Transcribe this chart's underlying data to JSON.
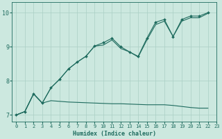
{
  "background_color": "#cce8df",
  "grid_color": "#aacfc5",
  "line_color": "#1e6b5e",
  "xlabel": "Humidex (Indice chaleur)",
  "xlim": [
    -0.5,
    23
  ],
  "ylim": [
    6.8,
    10.3
  ],
  "yticks": [
    7,
    8,
    9,
    10
  ],
  "xticks": [
    0,
    1,
    2,
    3,
    4,
    5,
    6,
    7,
    8,
    9,
    10,
    11,
    12,
    13,
    14,
    15,
    16,
    17,
    18,
    19,
    20,
    21,
    22,
    23
  ],
  "s1_x": [
    0,
    1,
    2,
    3,
    4,
    5,
    6,
    7,
    8,
    9,
    10,
    11,
    12,
    13,
    14,
    15,
    16,
    17,
    18,
    19,
    20,
    21,
    22
  ],
  "s1_y": [
    7.0,
    7.1,
    7.62,
    7.35,
    7.8,
    8.05,
    8.35,
    8.55,
    8.72,
    9.02,
    9.12,
    9.25,
    9.0,
    8.85,
    8.72,
    9.25,
    9.72,
    9.8,
    9.3,
    9.8,
    9.9,
    9.9,
    10.0
  ],
  "s2_x": [
    0,
    1,
    2,
    3,
    4,
    5,
    6,
    7,
    8,
    9,
    10,
    11,
    12,
    13,
    14,
    15,
    16,
    17,
    18,
    19,
    20,
    21,
    22
  ],
  "s2_y": [
    7.0,
    7.1,
    7.62,
    7.35,
    7.8,
    8.05,
    8.35,
    8.55,
    8.72,
    9.02,
    9.05,
    9.2,
    8.95,
    8.85,
    8.7,
    9.2,
    9.65,
    9.75,
    9.3,
    9.75,
    9.85,
    9.85,
    9.98
  ],
  "s3_x": [
    0,
    1,
    2,
    3,
    4,
    5,
    6,
    7,
    8,
    9,
    10,
    11,
    12,
    13,
    14,
    15,
    16,
    17,
    18,
    19,
    20,
    21,
    22
  ],
  "s3_y": [
    7.0,
    7.1,
    7.62,
    7.35,
    7.42,
    7.4,
    7.38,
    7.37,
    7.36,
    7.35,
    7.34,
    7.33,
    7.33,
    7.32,
    7.31,
    7.3,
    7.3,
    7.3,
    7.28,
    7.25,
    7.22,
    7.2,
    7.2
  ],
  "title_fontsize": 7,
  "tick_fontsize": 5,
  "ylabel_fontsize": 6
}
